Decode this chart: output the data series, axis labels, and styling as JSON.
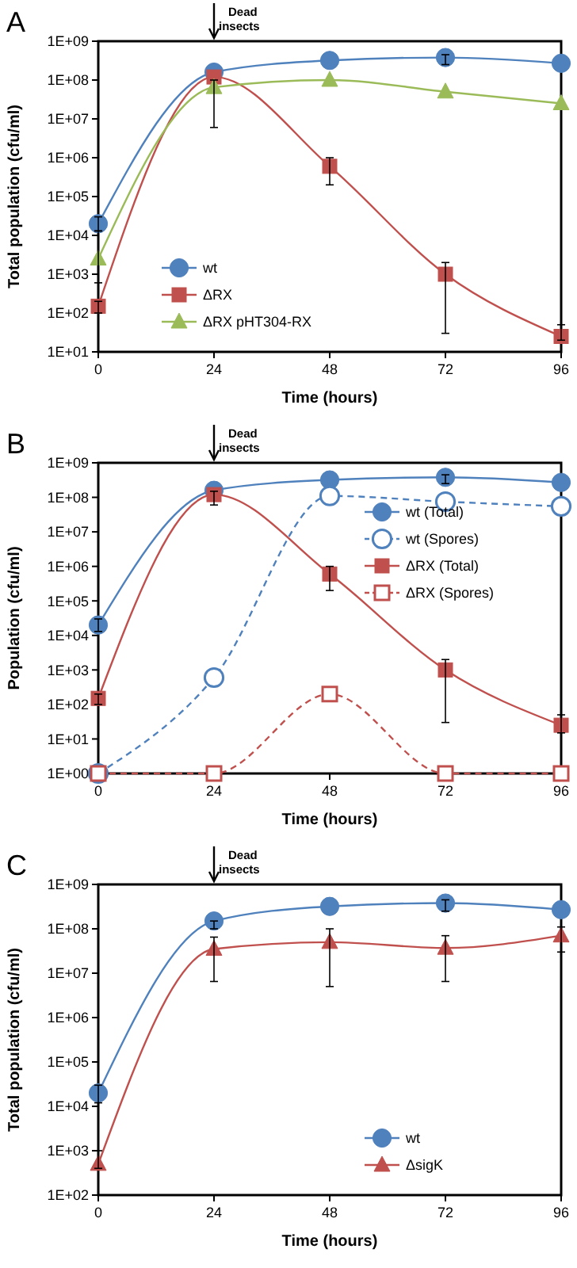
{
  "chart_data": [
    {
      "type": "line",
      "title": "A",
      "xlabel": "Time (hours)",
      "ylabel": "Total population (cfu/ml)",
      "annotations": [
        "Dead insects"
      ],
      "x": [
        0,
        24,
        48,
        72,
        96
      ],
      "log": "y",
      "legend": "bottom left",
      "grid": false,
      "xlim": [
        0,
        96
      ],
      "xticks": [
        0,
        24,
        48,
        72,
        96
      ],
      "ylim": [
        10,
        1000000000
      ],
      "yticks": [
        {
          "value": 10,
          "label": "1E+01"
        },
        {
          "value": 100,
          "label": "1E+02"
        },
        {
          "value": 1000,
          "label": "1E+03"
        },
        {
          "value": 10000,
          "label": "1E+04"
        },
        {
          "value": 100000,
          "label": "1E+05"
        },
        {
          "value": 1000000,
          "label": "1E+06"
        },
        {
          "value": 10000000,
          "label": "1E+07"
        },
        {
          "value": 100000000,
          "label": "1E+08"
        },
        {
          "value": 1000000000,
          "label": "1E+09"
        }
      ],
      "series": [
        {
          "name": "wt",
          "color": "#4f81bd",
          "marker": "circle",
          "line_style": "solid",
          "values": [
            20000,
            160000000,
            320000000,
            380000000,
            270000000
          ],
          "errors": [
            [
              13000,
              30000
            ],
            null,
            null,
            [
              250000000,
              450000000
            ],
            null
          ]
        },
        {
          "name": "ΔRX",
          "color": "#c0504d",
          "marker": "square",
          "line_style": "solid",
          "values": [
            150,
            120000000,
            600000,
            1000,
            25
          ],
          "errors": [
            [
              100,
              200
            ],
            null,
            [
              200000,
              1000000
            ],
            [
              30,
              2000
            ],
            [
              20,
              50
            ]
          ]
        },
        {
          "name": "ΔRX pHT304-RX",
          "color": "#9bbb59",
          "marker": "triangle",
          "line_style": "solid",
          "values": [
            2500,
            65000000,
            100000000,
            50000000,
            25000000
          ],
          "errors": [
            [
              600,
              13000
            ],
            [
              6000000,
              100000000
            ],
            null,
            null,
            null
          ]
        }
      ]
    },
    {
      "type": "line",
      "title": "B",
      "xlabel": "Time (hours)",
      "ylabel": "Population (cfu/ml)",
      "annotations": [
        "Dead insects"
      ],
      "x": [
        0,
        24,
        48,
        72,
        96
      ],
      "log": "y",
      "legend": "right",
      "grid": false,
      "xlim": [
        0,
        96
      ],
      "xticks": [
        0,
        24,
        48,
        72,
        96
      ],
      "ylim": [
        1,
        1000000000
      ],
      "yticks": [
        {
          "value": 1,
          "label": "1E+00"
        },
        {
          "value": 10,
          "label": "1E+01"
        },
        {
          "value": 100,
          "label": "1E+02"
        },
        {
          "value": 1000,
          "label": "1E+03"
        },
        {
          "value": 10000,
          "label": "1E+04"
        },
        {
          "value": 100000,
          "label": "1E+05"
        },
        {
          "value": 1000000,
          "label": "1E+06"
        },
        {
          "value": 10000000,
          "label": "1E+07"
        },
        {
          "value": 100000000,
          "label": "1E+08"
        },
        {
          "value": 1000000000,
          "label": "1E+09"
        }
      ],
      "series": [
        {
          "name": "wt (Total)",
          "color": "#4f81bd",
          "marker": "circle",
          "line_style": "solid",
          "values": [
            20000,
            160000000,
            320000000,
            380000000,
            270000000
          ],
          "errors": [
            [
              13000,
              30000
            ],
            null,
            null,
            [
              250000000,
              450000000
            ],
            null
          ]
        },
        {
          "name": "wt (Spores)",
          "color": "#4f81bd",
          "marker": "circle",
          "line_style": "dashed",
          "values": [
            1,
            600,
            110000000,
            75000000,
            55000000
          ]
        },
        {
          "name": "ΔRX (Total)",
          "color": "#c0504d",
          "marker": "square",
          "line_style": "solid",
          "values": [
            150,
            120000000,
            600000,
            1000,
            25
          ],
          "errors": [
            [
              100,
              200
            ],
            [
              60000000,
              150000000
            ],
            [
              200000,
              1000000
            ],
            [
              30,
              2000
            ],
            [
              15,
              50
            ]
          ]
        },
        {
          "name": "ΔRX (Spores)",
          "color": "#c0504d",
          "marker": "square",
          "line_style": "dashed",
          "values": [
            1,
            1,
            200,
            1,
            1
          ]
        }
      ]
    },
    {
      "type": "line",
      "title": "C",
      "xlabel": "Time (hours)",
      "ylabel": "Total population (cfu/ml)",
      "annotations": [
        "Dead insects"
      ],
      "x": [
        0,
        24,
        48,
        72,
        96
      ],
      "log": "y",
      "legend": "bottom right",
      "grid": false,
      "xlim": [
        0,
        96
      ],
      "xticks": [
        0,
        24,
        48,
        72,
        96
      ],
      "ylim": [
        100,
        1000000000
      ],
      "yticks": [
        {
          "value": 100,
          "label": "1E+02"
        },
        {
          "value": 1000,
          "label": "1E+03"
        },
        {
          "value": 10000,
          "label": "1E+04"
        },
        {
          "value": 100000,
          "label": "1E+05"
        },
        {
          "value": 1000000,
          "label": "1E+06"
        },
        {
          "value": 10000000,
          "label": "1E+07"
        },
        {
          "value": 100000000,
          "label": "1E+08"
        },
        {
          "value": 1000000000,
          "label": "1E+09"
        }
      ],
      "series": [
        {
          "name": "wt",
          "color": "#4f81bd",
          "marker": "circle",
          "line_style": "solid",
          "values": [
            20000,
            150000000,
            320000000,
            380000000,
            270000000
          ],
          "errors": [
            [
              12000,
              30000
            ],
            [
              100000000,
              150000000
            ],
            null,
            [
              250000000,
              450000000
            ],
            null
          ]
        },
        {
          "name": "ΔsigK",
          "color": "#c0504d",
          "marker": "triangle",
          "line_style": "solid",
          "values": [
            500,
            35000000,
            50000000,
            37000000,
            70000000
          ],
          "errors": [
            [
              400,
              1000
            ],
            [
              6500000,
              65000000
            ],
            [
              5000000,
              100000000
            ],
            [
              6500000,
              70000000
            ],
            [
              30000000,
              110000000
            ]
          ]
        }
      ]
    }
  ]
}
